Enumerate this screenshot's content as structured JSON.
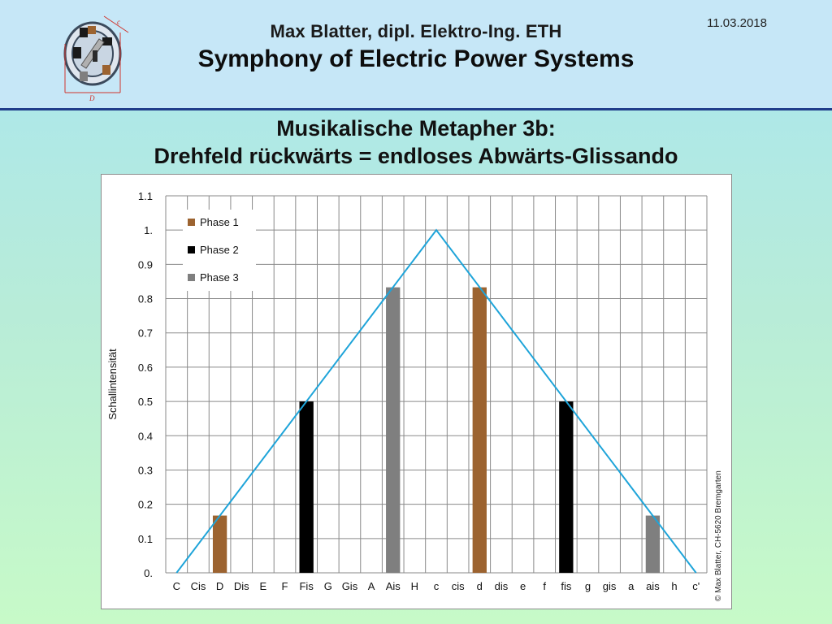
{
  "header": {
    "author": "Max Blatter, dipl. Elektro-Ing. ETH",
    "course": "Symphony of Electric Power Systems",
    "date": "11.03.2018",
    "logo_icon": "motor-cross-section-icon",
    "logo_labels": {
      "top": "c",
      "bottom": "D"
    }
  },
  "slide": {
    "title_line1": "Musikalische Metapher 3b:",
    "title_line2": "Drehfeld rückwärts = endloses Abwärts-Glissando"
  },
  "copyright": "© Max Blatter, CH-5620 Bremgarten",
  "colors": {
    "phase1": "#9c6330",
    "phase2": "#000000",
    "phase3": "#7f7f7f",
    "envelope": "#1ea4d9"
  },
  "chart_data": {
    "type": "bar",
    "ylabel": "Schallintensität",
    "ylim": [
      0,
      1.1
    ],
    "yticks": [
      "0.",
      "0.1",
      "0.2",
      "0.3",
      "0.4",
      "0.5",
      "0.6",
      "0.7",
      "0.8",
      "0.9",
      "1.",
      "1.1"
    ],
    "ytick_values": [
      0,
      0.1,
      0.2,
      0.3,
      0.4,
      0.5,
      0.6,
      0.7,
      0.8,
      0.9,
      1.0,
      1.1
    ],
    "categories": [
      "C",
      "Cis",
      "D",
      "Dis",
      "E",
      "F",
      "Fis",
      "G",
      "Gis",
      "A",
      "Ais",
      "H",
      "c",
      "cis",
      "d",
      "dis",
      "e",
      "f",
      "fis",
      "g",
      "gis",
      "a",
      "ais",
      "h",
      "c'"
    ],
    "grid": true,
    "legend_position": "top-left",
    "series": [
      {
        "name": "Phase 1",
        "values": [
          0,
          0,
          0.167,
          0,
          0,
          0,
          0,
          0,
          0,
          0,
          0,
          0,
          0,
          0,
          0.833,
          0,
          0,
          0,
          0,
          0,
          0,
          0,
          0,
          0,
          0
        ]
      },
      {
        "name": "Phase 2",
        "values": [
          0,
          0,
          0,
          0,
          0,
          0,
          0.5,
          0,
          0,
          0,
          0,
          0,
          0,
          0,
          0,
          0,
          0,
          0,
          0.5,
          0,
          0,
          0,
          0,
          0,
          0
        ]
      },
      {
        "name": "Phase 3",
        "values": [
          0,
          0,
          0,
          0,
          0,
          0,
          0,
          0,
          0,
          0,
          0.833,
          0,
          0,
          0,
          0,
          0,
          0,
          0,
          0,
          0,
          0,
          0,
          0.167,
          0,
          0
        ]
      }
    ],
    "envelope": {
      "type": "line",
      "points": [
        [
          0,
          0
        ],
        [
          12,
          1.0
        ],
        [
          24,
          0
        ]
      ]
    }
  }
}
